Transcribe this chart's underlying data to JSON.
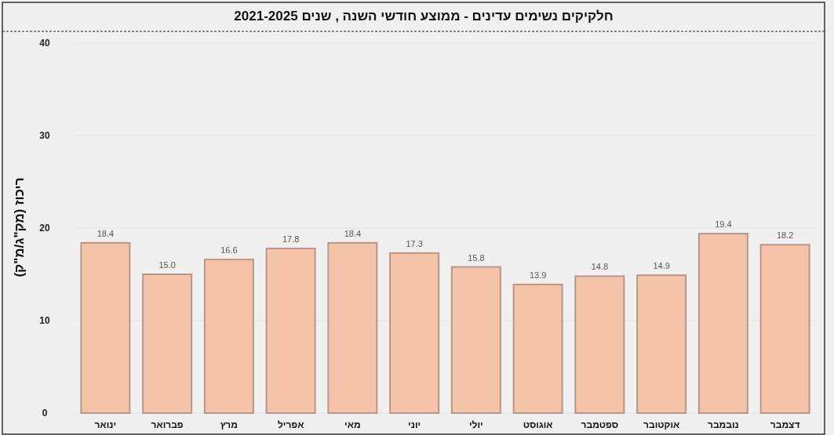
{
  "chart_data": {
    "type": "bar",
    "title": "חלקיקים נשימים עדינים - ממוצע חודשי השנה , שנים 2021-2025",
    "ylabel": "ריכוז (מק\"ג/מ\"ק)",
    "categories": [
      "ינואר",
      "פברואר",
      "מרץ",
      "אפריל",
      "מאי",
      "יוני",
      "יולי",
      "אוגוסט",
      "ספטמבר",
      "אוקטובר",
      "נובמבר",
      "דצמבר"
    ],
    "values": [
      18.4,
      15.0,
      16.6,
      17.8,
      18.4,
      17.3,
      15.8,
      13.9,
      14.8,
      14.9,
      19.4,
      18.2
    ],
    "value_labels": [
      "18.4",
      "15.0",
      "16.6",
      "17.8",
      "18.4",
      "17.3",
      "15.8",
      "13.9",
      "14.8",
      "14.9",
      "19.4",
      "18.2"
    ],
    "color": "#f4c3a8",
    "ylim": [
      0,
      40
    ],
    "yticks": [
      0,
      10,
      20,
      30,
      40
    ],
    "grid": "y"
  }
}
